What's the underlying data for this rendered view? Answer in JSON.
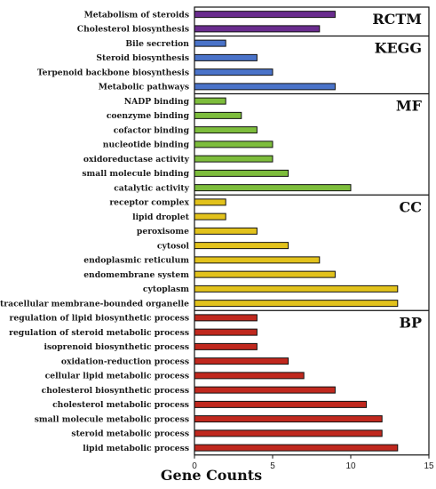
{
  "chart_data": {
    "type": "bar",
    "orientation": "horizontal",
    "xlabel": "Gene Counts",
    "xlim": [
      0,
      15
    ],
    "xticks": [
      0,
      5,
      10,
      15
    ],
    "grid": false,
    "groups": [
      {
        "name": "RCTM",
        "color": "#6a2c8e",
        "categories": [
          "Metabolism of steroids",
          "Cholesterol biosynthesis"
        ],
        "values": [
          9,
          8
        ]
      },
      {
        "name": "KEGG",
        "color": "#4a73c9",
        "categories": [
          "Bile secretion",
          "Steroid biosynthesis",
          "Terpenoid backbone biosynthesis",
          "Metabolic pathways"
        ],
        "values": [
          2,
          4,
          5,
          9
        ]
      },
      {
        "name": "MF",
        "color": "#7dbd3c",
        "categories": [
          "NADP binding",
          "coenzyme binding",
          "cofactor binding",
          "nucleotide binding",
          "oxidoreductase activity",
          "small molecule binding",
          "catalytic activity"
        ],
        "values": [
          2,
          3,
          4,
          5,
          5,
          6,
          10
        ]
      },
      {
        "name": "CC",
        "color": "#e2c21c",
        "categories": [
          "receptor complex",
          "lipid droplet",
          "peroxisome",
          "cytosol",
          "endoplasmic reticulum",
          "endomembrane system",
          "cytoplasm",
          "intracellular membrane-bounded organelle"
        ],
        "values": [
          2,
          2,
          4,
          6,
          8,
          9,
          13,
          13
        ]
      },
      {
        "name": "BP",
        "color": "#c0281e",
        "categories": [
          "regulation of lipid biosynthetic process",
          "regulation of steroid metabolic process",
          "isoprenoid biosynthetic process",
          "oxidation-reduction process",
          "cellular lipid metabolic process",
          "cholesterol biosynthetic process",
          "cholesterol metabolic process",
          "small molecule metabolic process",
          "steroid metabolic process",
          "lipid metabolic process"
        ],
        "values": [
          4,
          4,
          4,
          6,
          7,
          9,
          11,
          12,
          12,
          13
        ]
      }
    ]
  }
}
